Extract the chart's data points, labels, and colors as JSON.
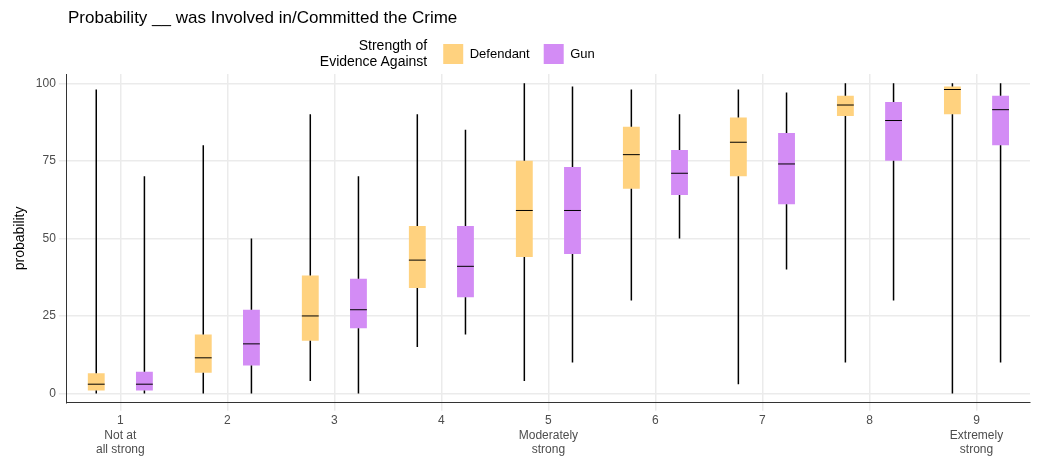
{
  "chart_data": {
    "type": "box",
    "title": "Probability __ was Involved in/Committed the Crime",
    "ylabel": "probability",
    "legend_title": "Strength of\nEvidence Against",
    "legend": "top left",
    "grid": true,
    "categories": [
      "1\nNot at\nall strong",
      "2",
      "3",
      "4",
      "5\nModerately\nstrong",
      "6",
      "7",
      "8",
      "9\nExtremely\nstrong"
    ],
    "ylim": [
      -3,
      103
    ],
    "yticks": [
      0,
      25,
      50,
      75,
      100
    ],
    "series": [
      {
        "name": "Defendant",
        "color": "#ffd27f",
        "boxes": [
          {
            "low": 0,
            "q1": 1,
            "median": 3,
            "q3": 6.5,
            "high": 98
          },
          {
            "low": 0,
            "q1": 6.7,
            "median": 11.5,
            "q3": 19,
            "high": 80
          },
          {
            "low": 4,
            "q1": 17,
            "median": 25,
            "q3": 38,
            "high": 90
          },
          {
            "low": 15,
            "q1": 34,
            "median": 43,
            "q3": 54,
            "high": 90
          },
          {
            "low": 4,
            "q1": 44,
            "median": 59,
            "q3": 75,
            "high": 100
          },
          {
            "low": 30,
            "q1": 66,
            "median": 77,
            "q3": 86,
            "high": 98
          },
          {
            "low": 3,
            "q1": 70,
            "median": 81,
            "q3": 89,
            "high": 98
          },
          {
            "low": 10,
            "q1": 89.5,
            "median": 93,
            "q3": 96,
            "high": 100
          },
          {
            "low": 0,
            "q1": 90,
            "median": 98,
            "q3": 99,
            "high": 100
          }
        ]
      },
      {
        "name": "Gun",
        "color": "#d38cf5",
        "boxes": [
          {
            "low": 0,
            "q1": 1,
            "median": 3,
            "q3": 7,
            "high": 70
          },
          {
            "low": 0,
            "q1": 9,
            "median": 16,
            "q3": 27,
            "high": 50
          },
          {
            "low": 0,
            "q1": 21,
            "median": 27,
            "q3": 37,
            "high": 70
          },
          {
            "low": 19,
            "q1": 31,
            "median": 41,
            "q3": 54,
            "high": 85
          },
          {
            "low": 10,
            "q1": 45,
            "median": 59,
            "q3": 73,
            "high": 99
          },
          {
            "low": 50,
            "q1": 64,
            "median": 71,
            "q3": 78.5,
            "high": 90
          },
          {
            "low": 40,
            "q1": 61,
            "median": 74,
            "q3": 84,
            "high": 97
          },
          {
            "low": 30,
            "q1": 75,
            "median": 88,
            "q3": 94,
            "high": 100
          },
          {
            "low": 10,
            "q1": 80,
            "median": 91.5,
            "q3": 96,
            "high": 100
          }
        ]
      }
    ]
  }
}
